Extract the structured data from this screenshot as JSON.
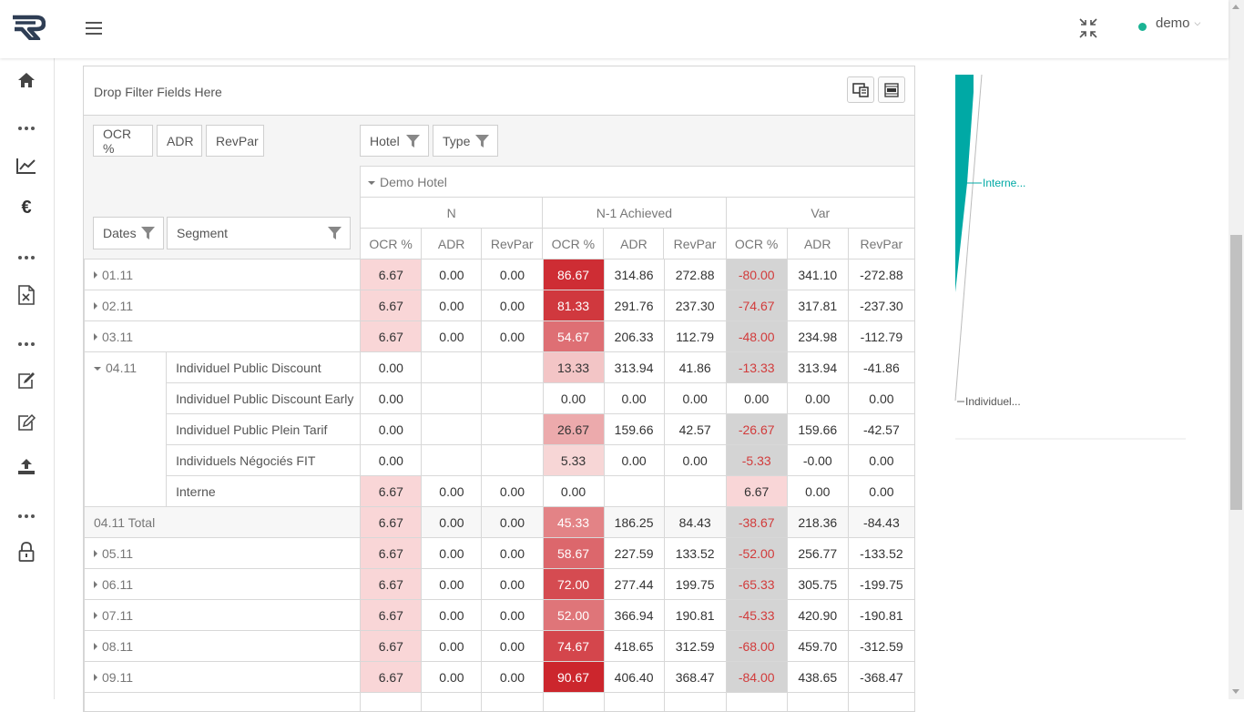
{
  "user": {
    "name": "demo"
  },
  "pivot": {
    "filter_placeholder": "Drop Filter Fields Here",
    "value_fields": [
      "OCR %",
      "ADR",
      "RevPar"
    ],
    "column_fields": [
      "Hotel",
      "Type"
    ],
    "row_fields": [
      "Dates",
      "Segment"
    ],
    "hotel": "Demo Hotel",
    "groups": [
      "N",
      "N-1 Achieved",
      "Var"
    ],
    "measures": [
      "OCR %",
      "ADR",
      "RevPar"
    ],
    "rows": [
      {
        "kind": "date",
        "label": "01.11",
        "values": [
          "6.67",
          "0.00",
          "0.00",
          "86.67",
          "314.86",
          "272.88",
          "-80.00",
          "341.10",
          "-272.88"
        ]
      },
      {
        "kind": "date",
        "label": "02.11",
        "values": [
          "6.67",
          "0.00",
          "0.00",
          "81.33",
          "291.76",
          "237.30",
          "-74.67",
          "317.81",
          "-237.30"
        ]
      },
      {
        "kind": "date",
        "label": "03.11",
        "values": [
          "6.67",
          "0.00",
          "0.00",
          "54.67",
          "206.33",
          "112.79",
          "-48.00",
          "234.98",
          "-112.79"
        ]
      },
      {
        "kind": "expanded",
        "label": "04.11",
        "segments": [
          {
            "label": "Individuel Public Discount",
            "values": [
              "0.00",
              "",
              "",
              "13.33",
              "313.94",
              "41.86",
              "-13.33",
              "313.94",
              "-41.86"
            ]
          },
          {
            "label": "Individuel Public Discount Early",
            "values": [
              "0.00",
              "",
              "",
              "0.00",
              "0.00",
              "0.00",
              "0.00",
              "0.00",
              "0.00"
            ]
          },
          {
            "label": "Individuel Public Plein Tarif",
            "values": [
              "0.00",
              "",
              "",
              "26.67",
              "159.66",
              "42.57",
              "-26.67",
              "159.66",
              "-42.57"
            ]
          },
          {
            "label": "Individuels Négociés FIT",
            "values": [
              "0.00",
              "",
              "",
              "5.33",
              "0.00",
              "0.00",
              "-5.33",
              "-0.00",
              "0.00"
            ]
          },
          {
            "label": "Interne",
            "values": [
              "6.67",
              "0.00",
              "0.00",
              "0.00",
              "",
              "",
              "6.67",
              "0.00",
              "0.00"
            ]
          }
        ]
      },
      {
        "kind": "total",
        "label": "04.11 Total",
        "values": [
          "6.67",
          "0.00",
          "0.00",
          "45.33",
          "186.25",
          "84.43",
          "-38.67",
          "218.36",
          "-84.43"
        ]
      },
      {
        "kind": "date",
        "label": "05.11",
        "values": [
          "6.67",
          "0.00",
          "0.00",
          "58.67",
          "227.59",
          "133.52",
          "-52.00",
          "256.77",
          "-133.52"
        ]
      },
      {
        "kind": "date",
        "label": "06.11",
        "values": [
          "6.67",
          "0.00",
          "0.00",
          "72.00",
          "277.44",
          "199.75",
          "-65.33",
          "305.75",
          "-199.75"
        ]
      },
      {
        "kind": "date",
        "label": "07.11",
        "values": [
          "6.67",
          "0.00",
          "0.00",
          "52.00",
          "366.94",
          "190.81",
          "-45.33",
          "420.90",
          "-190.81"
        ]
      },
      {
        "kind": "date",
        "label": "08.11",
        "values": [
          "6.67",
          "0.00",
          "0.00",
          "74.67",
          "418.65",
          "312.59",
          "-68.00",
          "459.70",
          "-312.59"
        ]
      },
      {
        "kind": "date",
        "label": "09.11",
        "values": [
          "6.67",
          "0.00",
          "0.00",
          "90.67",
          "406.40",
          "368.47",
          "-84.00",
          "438.65",
          "-368.47"
        ]
      },
      {
        "kind": "date",
        "label": "",
        "values": [
          "",
          "",
          "",
          "",
          "",
          "",
          "",
          "",
          ""
        ]
      }
    ]
  },
  "chart": {
    "labels": [
      "Interne...",
      "Individuel..."
    ]
  },
  "colors": {
    "accent_teal": "#00a9a5",
    "status_online": "#1ab394",
    "negative_text": "#d23b3b",
    "var_background": "#d4d4d4"
  }
}
